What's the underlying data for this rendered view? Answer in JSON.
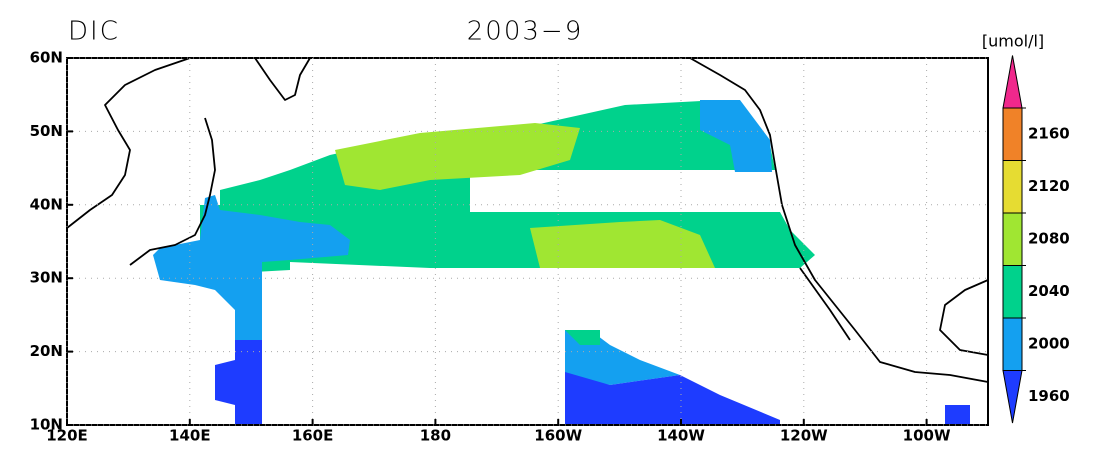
{
  "title": "DIC",
  "date": "2003−9",
  "map": {
    "xlim": [
      120,
      270
    ],
    "ylim": [
      10,
      60
    ],
    "xticks": [
      {
        "value": 120,
        "label": "120E"
      },
      {
        "value": 140,
        "label": "140E"
      },
      {
        "value": 160,
        "label": "160E"
      },
      180,
      {
        "value": 200,
        "label": "160W"
      },
      {
        "value": 220,
        "label": "140W"
      },
      {
        "value": 240,
        "label": "120W"
      },
      {
        "value": 260,
        "label": "100W"
      }
    ],
    "yticks": [
      {
        "value": 10,
        "label": "10N"
      },
      {
        "value": 20,
        "label": "20N"
      },
      {
        "value": 30,
        "label": "30N"
      },
      {
        "value": 40,
        "label": "40N"
      },
      {
        "value": 50,
        "label": "50N"
      },
      {
        "value": 60,
        "label": "60N"
      }
    ]
  },
  "colorbar": {
    "unit": "[umol/l]",
    "levels": [
      1960,
      2000,
      2040,
      2080,
      2120,
      2160
    ],
    "colors": [
      "#1e3cff",
      "#14a0f0",
      "#00d28c",
      "#a0e632",
      "#e6dc32",
      "#f08228",
      "#f0288c"
    ]
  }
}
